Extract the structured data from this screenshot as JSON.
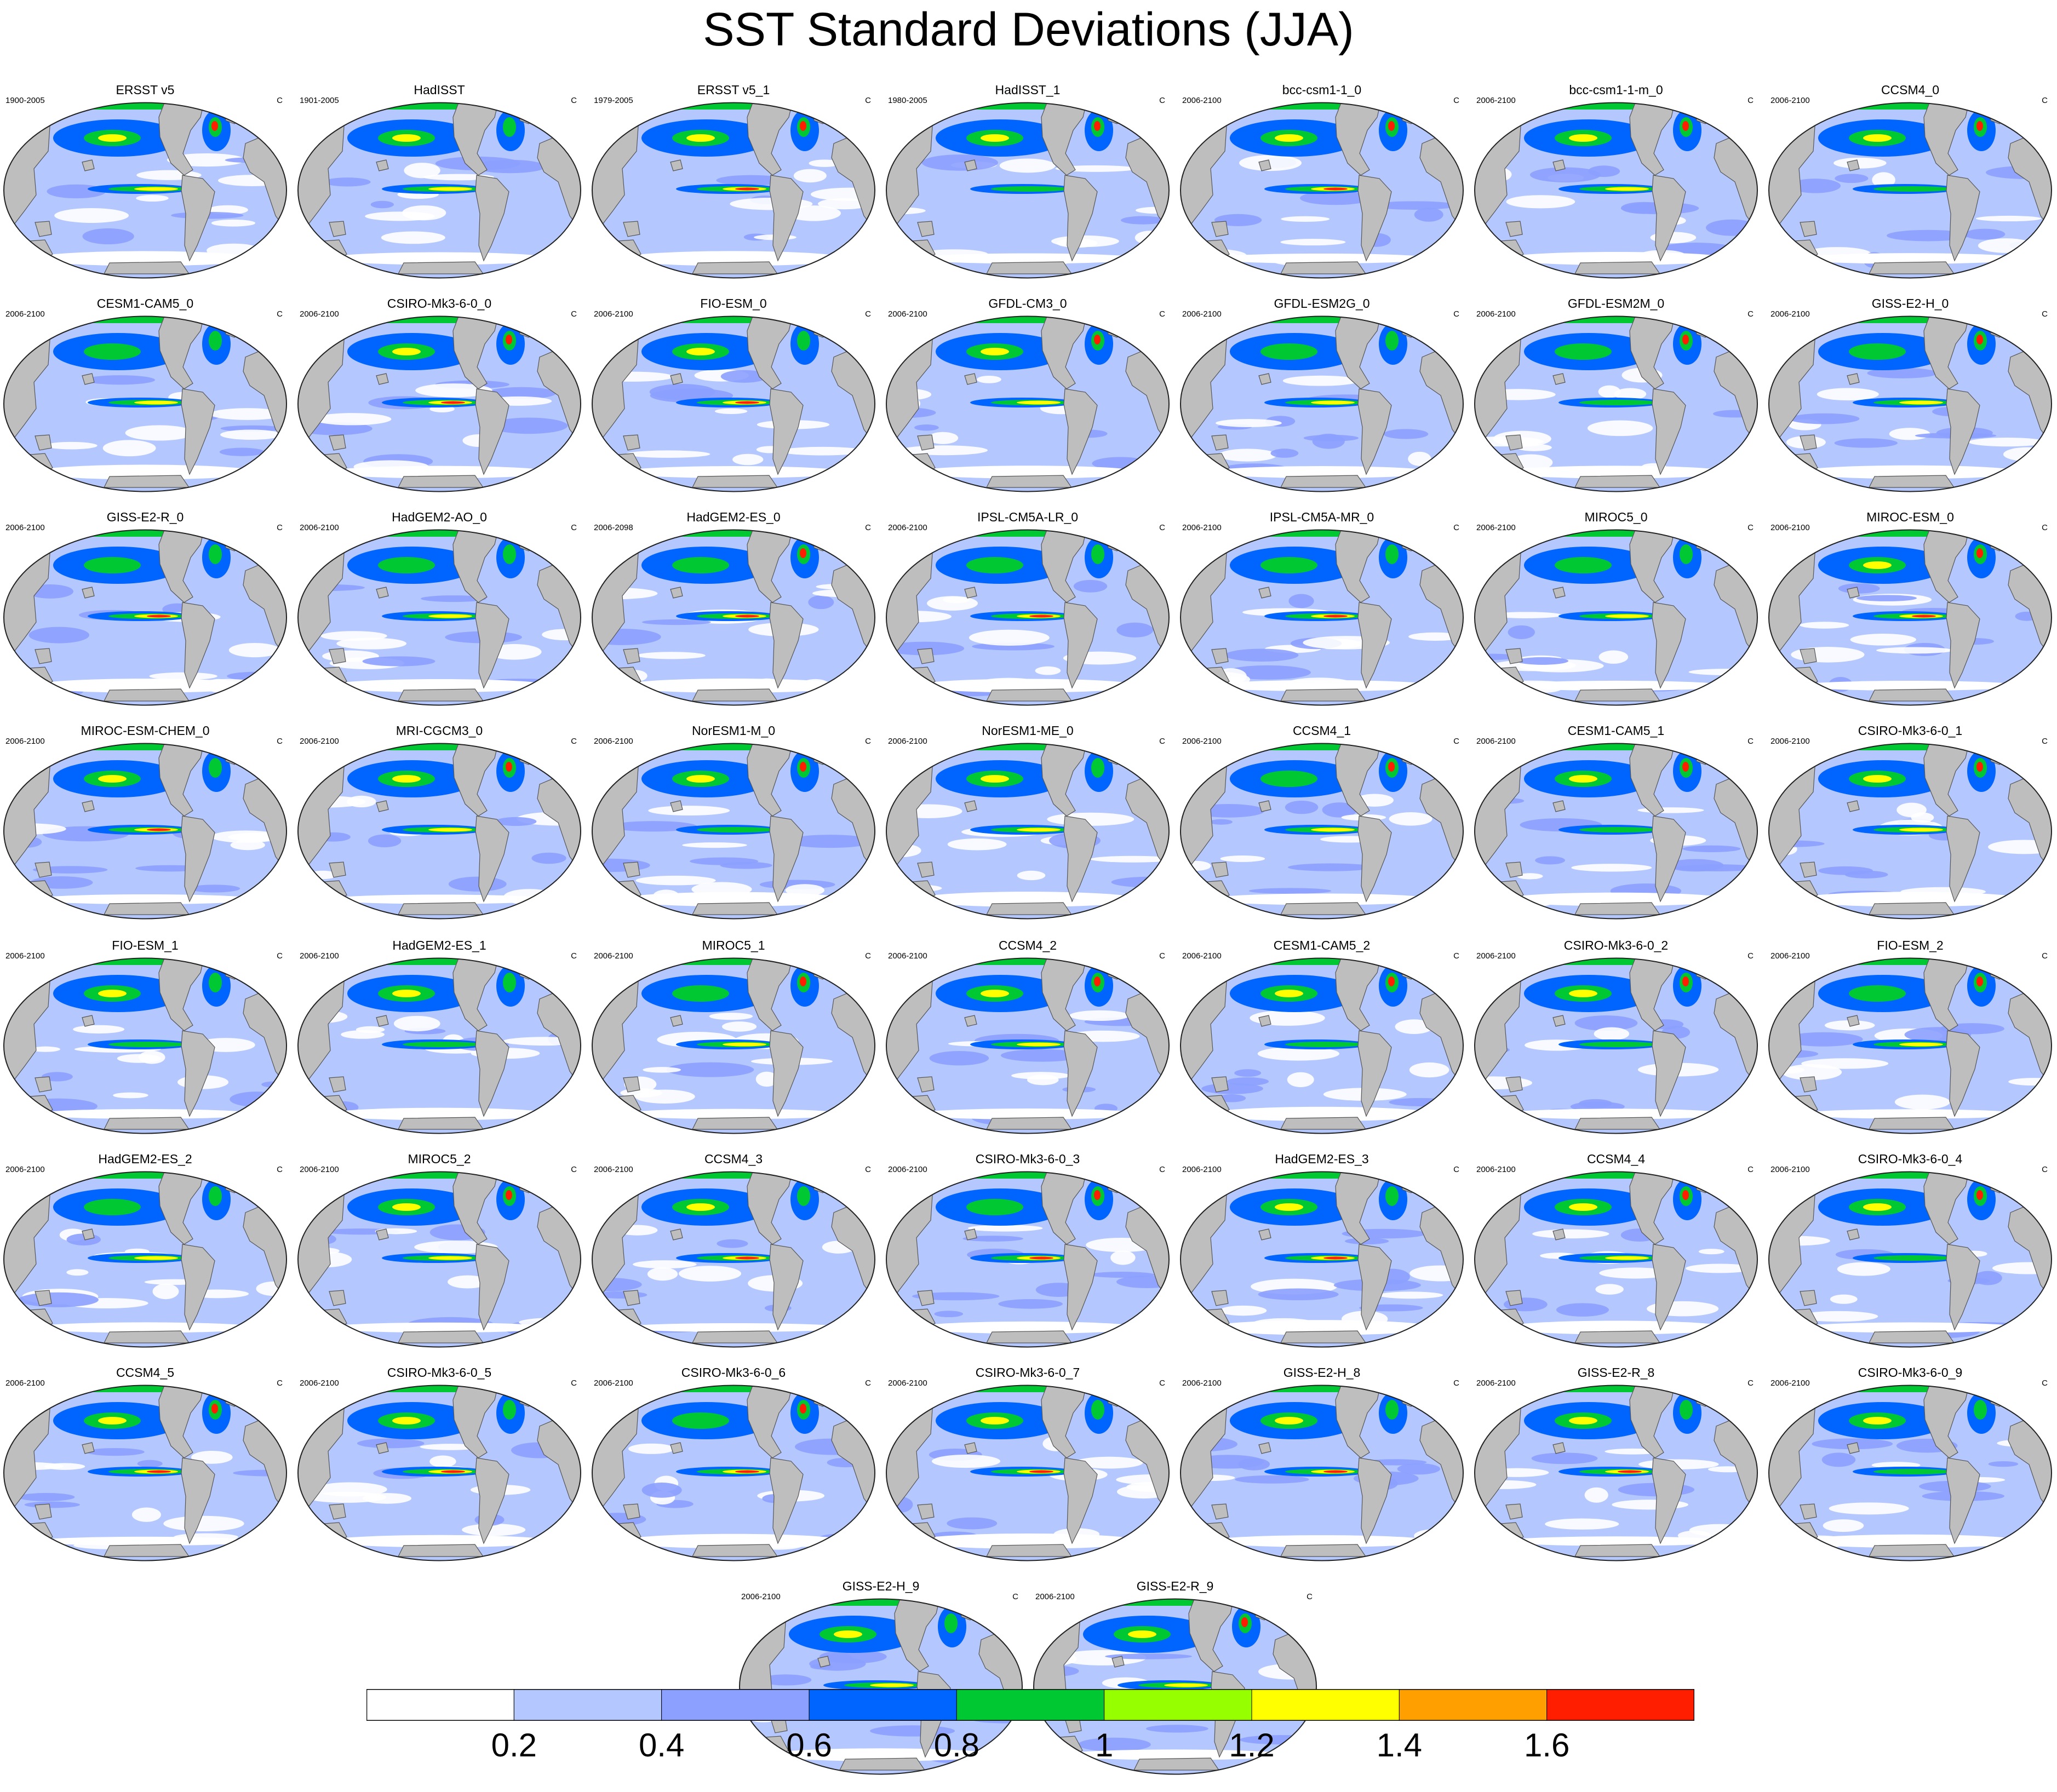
{
  "title": "SST Standard Deviations (JJA)",
  "units": "C",
  "panels": [
    {
      "name": "ERSST v5",
      "period": "1900-2005"
    },
    {
      "name": "HadISST",
      "period": "1901-2005"
    },
    {
      "name": "ERSST v5_1",
      "period": "1979-2005"
    },
    {
      "name": "HadISST_1",
      "period": "1980-2005"
    },
    {
      "name": "bcc-csm1-1_0",
      "period": "2006-2100"
    },
    {
      "name": "bcc-csm1-1-m_0",
      "period": "2006-2100"
    },
    {
      "name": "CCSM4_0",
      "period": "2006-2100"
    },
    {
      "name": "CESM1-CAM5_0",
      "period": "2006-2100"
    },
    {
      "name": "CSIRO-Mk3-6-0_0",
      "period": "2006-2100"
    },
    {
      "name": "FIO-ESM_0",
      "period": "2006-2100"
    },
    {
      "name": "GFDL-CM3_0",
      "period": "2006-2100"
    },
    {
      "name": "GFDL-ESM2G_0",
      "period": "2006-2100"
    },
    {
      "name": "GFDL-ESM2M_0",
      "period": "2006-2100"
    },
    {
      "name": "GISS-E2-H_0",
      "period": "2006-2100"
    },
    {
      "name": "GISS-E2-R_0",
      "period": "2006-2100"
    },
    {
      "name": "HadGEM2-AO_0",
      "period": "2006-2100"
    },
    {
      "name": "HadGEM2-ES_0",
      "period": "2006-2098"
    },
    {
      "name": "IPSL-CM5A-LR_0",
      "period": "2006-2100"
    },
    {
      "name": "IPSL-CM5A-MR_0",
      "period": "2006-2100"
    },
    {
      "name": "MIROC5_0",
      "period": "2006-2100"
    },
    {
      "name": "MIROC-ESM_0",
      "period": "2006-2100"
    },
    {
      "name": "MIROC-ESM-CHEM_0",
      "period": "2006-2100"
    },
    {
      "name": "MRI-CGCM3_0",
      "period": "2006-2100"
    },
    {
      "name": "NorESM1-M_0",
      "period": "2006-2100"
    },
    {
      "name": "NorESM1-ME_0",
      "period": "2006-2100"
    },
    {
      "name": "CCSM4_1",
      "period": "2006-2100"
    },
    {
      "name": "CESM1-CAM5_1",
      "period": "2006-2100"
    },
    {
      "name": "CSIRO-Mk3-6-0_1",
      "period": "2006-2100"
    },
    {
      "name": "FIO-ESM_1",
      "period": "2006-2100"
    },
    {
      "name": "HadGEM2-ES_1",
      "period": "2006-2100"
    },
    {
      "name": "MIROC5_1",
      "period": "2006-2100"
    },
    {
      "name": "CCSM4_2",
      "period": "2006-2100"
    },
    {
      "name": "CESM1-CAM5_2",
      "period": "2006-2100"
    },
    {
      "name": "CSIRO-Mk3-6-0_2",
      "period": "2006-2100"
    },
    {
      "name": "FIO-ESM_2",
      "period": "2006-2100"
    },
    {
      "name": "HadGEM2-ES_2",
      "period": "2006-2100"
    },
    {
      "name": "MIROC5_2",
      "period": "2006-2100"
    },
    {
      "name": "CCSM4_3",
      "period": "2006-2100"
    },
    {
      "name": "CSIRO-Mk3-6-0_3",
      "period": "2006-2100"
    },
    {
      "name": "HadGEM2-ES_3",
      "period": "2006-2100"
    },
    {
      "name": "CCSM4_4",
      "period": "2006-2100"
    },
    {
      "name": "CSIRO-Mk3-6-0_4",
      "period": "2006-2100"
    },
    {
      "name": "CCSM4_5",
      "period": "2006-2100"
    },
    {
      "name": "CSIRO-Mk3-6-0_5",
      "period": "2006-2100"
    },
    {
      "name": "CSIRO-Mk3-6-0_6",
      "period": "2006-2100"
    },
    {
      "name": "CSIRO-Mk3-6-0_7",
      "period": "2006-2100"
    },
    {
      "name": "GISS-E2-H_8",
      "period": "2006-2100"
    },
    {
      "name": "GISS-E2-R_8",
      "period": "2006-2100"
    },
    {
      "name": "CSIRO-Mk3-6-0_9",
      "period": "2006-2100"
    },
    {
      "name": "GISS-E2-H_9",
      "period": "2006-2100"
    },
    {
      "name": "GISS-E2-R_9",
      "period": "2006-2100"
    }
  ],
  "colorbar": {
    "labels": [
      "0.2",
      "0.4",
      "0.6",
      "0.8",
      "1",
      "1.2",
      "1.4",
      "1.6"
    ],
    "colors": [
      "#ffffff",
      "#b4c8ff",
      "#8ca0ff",
      "#0064ff",
      "#00c832",
      "#96ff00",
      "#ffff00",
      "#ffa000",
      "#ff1e00"
    ]
  },
  "colors": {
    "land": "#bebebe",
    "ocean_base": "#b4c8ff"
  }
}
